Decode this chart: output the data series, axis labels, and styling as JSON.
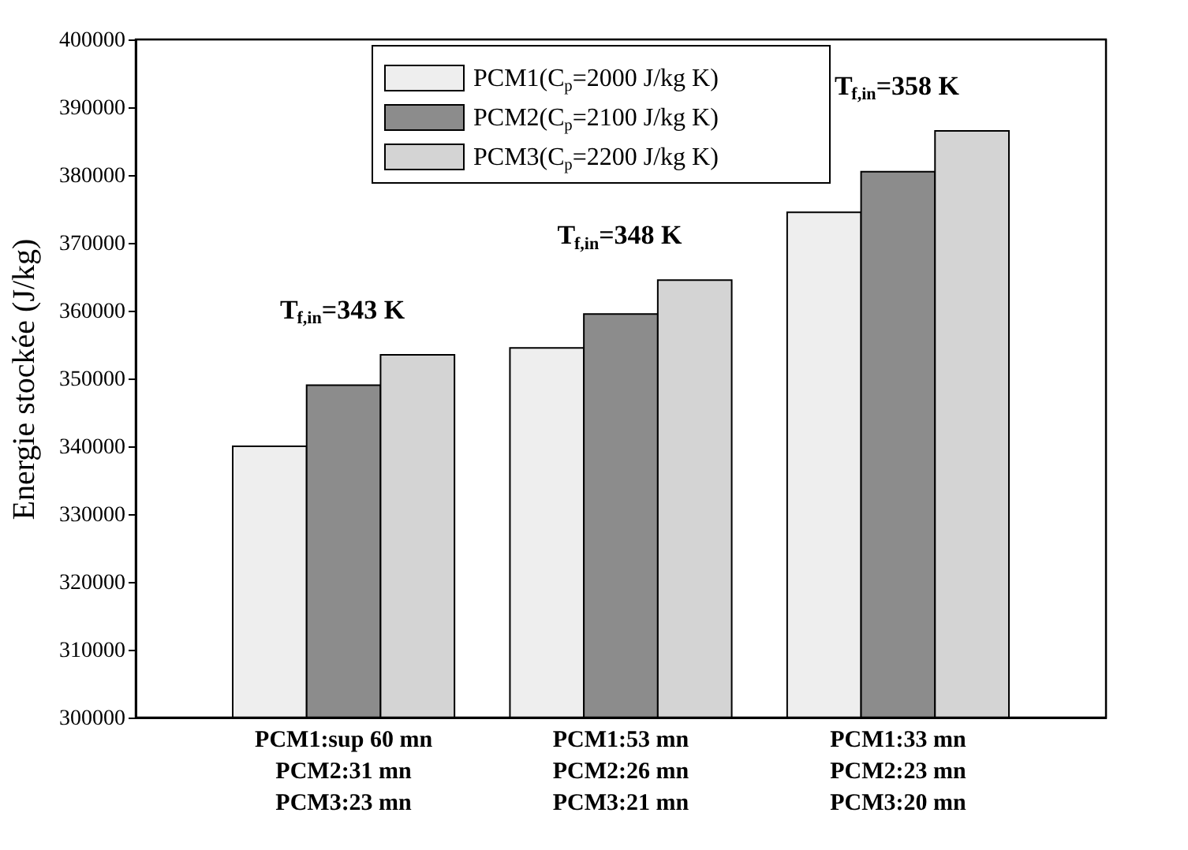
{
  "chart_data": {
    "type": "bar",
    "ylabel": "Energie stockée (J/kg)",
    "categories": [
      "PCM1:sup 60 mn\nPCM2:31 mn\nPCM3:23 mn",
      "PCM1:53 mn\nPCM2:26 mn\nPCM3:21 mn",
      "PCM1:33 mn\nPCM2:23 mn\nPCM3:20 mn"
    ],
    "series": [
      {
        "name": "PCM1(C$_{p}$=2000 J/kg K)",
        "color": "#eeeeee",
        "values": [
          340000,
          354500,
          374500
        ]
      },
      {
        "name": "PCM2(C$_{p}$=2100 J/kg K)",
        "color": "#8c8c8c",
        "values": [
          349000,
          359500,
          380500
        ]
      },
      {
        "name": "PCM3(C$_{p}$=2200 J/kg K)",
        "color": "#d4d4d4",
        "values": [
          353500,
          364500,
          386500
        ]
      }
    ],
    "ylim": [
      300000,
      400000
    ],
    "yticks": [
      300000,
      310000,
      320000,
      330000,
      340000,
      350000,
      360000,
      370000,
      380000,
      390000,
      400000
    ],
    "annotations": [
      "T$_{f,in}$=343 K",
      "T$_{f,in}$=348 K",
      "T$_{f,in}$=358 K"
    ],
    "grid": false,
    "legend": "top"
  }
}
